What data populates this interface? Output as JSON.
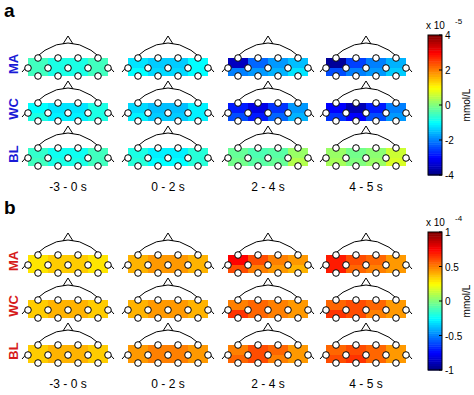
{
  "chart_data": [
    {
      "type": "heatmap",
      "title": "a",
      "color": "#1a1ad6",
      "rows": [
        "MA",
        "WC",
        "BL"
      ],
      "columns": [
        "-3 - 0 s",
        "0 - 2 s",
        "2 - 4 s",
        "4 - 5 s"
      ],
      "cells": [
        [
          [
            -0.5,
            -0.8,
            -0.8,
            -0.5,
            -0.5,
            -0.8,
            -0.8,
            -0.5
          ],
          [
            -1.2,
            -1.4,
            -1.4,
            -1.0,
            -1.0,
            -1.3,
            -1.3,
            -1.0
          ],
          [
            -3.5,
            -2.2,
            -1.8,
            -1.5,
            -2.0,
            -1.8,
            -1.6,
            -1.2
          ],
          [
            -3.8,
            -2.5,
            -2.0,
            -1.6,
            -2.4,
            -2.0,
            -1.8,
            -1.4
          ]
        ],
        [
          [
            -1.0,
            -1.2,
            -1.2,
            -0.8,
            -0.8,
            -1.1,
            -1.1,
            -0.8
          ],
          [
            -1.3,
            -1.5,
            -1.5,
            -1.1,
            -1.1,
            -1.4,
            -1.4,
            -1.1
          ],
          [
            -2.8,
            -3.2,
            -2.6,
            -1.8,
            -2.4,
            -2.8,
            -2.2,
            -1.6
          ],
          [
            -3.0,
            -3.6,
            -2.8,
            -2.0,
            -2.6,
            -3.0,
            -2.4,
            -1.8
          ]
        ],
        [
          [
            -0.6,
            -0.9,
            -0.9,
            -0.5,
            -0.5,
            -0.8,
            -0.8,
            -0.5
          ],
          [
            -0.8,
            -1.1,
            -1.1,
            -0.7,
            -0.7,
            -1.0,
            -1.0,
            -0.7
          ],
          [
            -0.2,
            -0.4,
            -0.3,
            0.2,
            -0.1,
            -0.3,
            -0.2,
            0.4
          ],
          [
            0.2,
            -0.1,
            0.1,
            0.6,
            0.3,
            0.0,
            0.2,
            0.7
          ]
        ]
      ],
      "colorbar": {
        "range": [
          -4,
          4
        ],
        "ticks": [
          4,
          2,
          0,
          -2,
          -4
        ],
        "label": "mmol/L",
        "scale_prefix": "x 10",
        "scale_exponent": -5
      }
    },
    {
      "type": "heatmap",
      "title": "b",
      "color": "#d61a1a",
      "rows": [
        "MA",
        "WC",
        "BL"
      ],
      "columns": [
        "-3 - 0 s",
        "0 - 2 s",
        "2 - 4 s",
        "4 - 5 s"
      ],
      "cells": [
        [
          [
            0.3,
            0.35,
            0.35,
            0.3,
            0.3,
            0.35,
            0.35,
            0.3
          ],
          [
            0.4,
            0.45,
            0.45,
            0.4,
            0.4,
            0.45,
            0.45,
            0.4
          ],
          [
            0.75,
            0.6,
            0.5,
            0.45,
            0.6,
            0.5,
            0.45,
            0.4
          ],
          [
            0.7,
            0.6,
            0.55,
            0.45,
            0.7,
            0.55,
            0.5,
            0.45
          ]
        ],
        [
          [
            0.35,
            0.4,
            0.4,
            0.35,
            0.35,
            0.4,
            0.4,
            0.35
          ],
          [
            0.4,
            0.45,
            0.45,
            0.4,
            0.4,
            0.45,
            0.45,
            0.4
          ],
          [
            0.5,
            0.55,
            0.5,
            0.45,
            0.65,
            0.55,
            0.5,
            0.45
          ],
          [
            0.55,
            0.6,
            0.55,
            0.45,
            0.65,
            0.6,
            0.5,
            0.45
          ]
        ],
        [
          [
            0.35,
            0.4,
            0.4,
            0.35,
            0.35,
            0.4,
            0.4,
            0.35
          ],
          [
            0.45,
            0.5,
            0.5,
            0.45,
            0.45,
            0.5,
            0.5,
            0.45
          ],
          [
            0.5,
            0.6,
            0.55,
            0.45,
            0.55,
            0.6,
            0.5,
            0.45
          ],
          [
            0.55,
            0.6,
            0.55,
            0.45,
            0.6,
            0.65,
            0.55,
            0.45
          ]
        ]
      ],
      "colorbar": {
        "range": [
          -1,
          1
        ],
        "ticks": [
          1,
          0.5,
          0,
          -0.5,
          -1
        ],
        "label": "mmol/L",
        "scale_prefix": "x 10",
        "scale_exponent": -4
      }
    }
  ]
}
